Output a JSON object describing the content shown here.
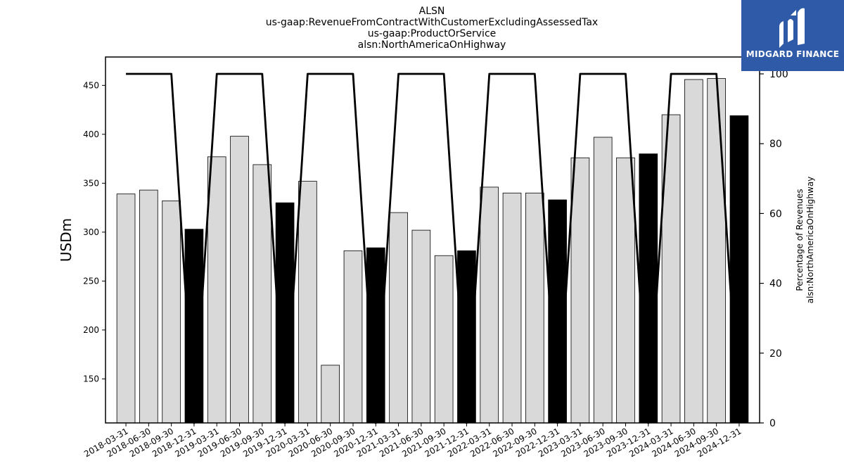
{
  "chart_data": {
    "type": "bar",
    "title_lines": [
      "ALSN",
      "us-gaap:RevenueFromContractWithCustomerExcludingAssessedTax",
      "us-gaap:ProductOrService",
      "alsn:NorthAmericaOnHighway"
    ],
    "ylabel": "USDm",
    "y2label_lines": [
      "Percentage of Revenues",
      "alsn:NorthAmericaOnHighway"
    ],
    "ylim": [
      105,
      479
    ],
    "y2lim": [
      0,
      100
    ],
    "yticks": [
      150,
      200,
      250,
      300,
      350,
      400,
      450
    ],
    "y2ticks": [
      0,
      20,
      40,
      60,
      80,
      100
    ],
    "categories": [
      "2018-03-31",
      "2018-06-30",
      "2018-09-30",
      "2018-12-31",
      "2019-03-31",
      "2019-06-30",
      "2019-09-30",
      "2019-12-31",
      "2020-03-31",
      "2020-06-30",
      "2020-09-30",
      "2020-12-31",
      "2021-03-31",
      "2021-06-30",
      "2021-09-30",
      "2021-12-31",
      "2022-03-31",
      "2022-06-30",
      "2022-09-30",
      "2022-12-31",
      "2023-03-31",
      "2023-06-30",
      "2023-09-30",
      "2023-12-31",
      "2024-03-31",
      "2024-06-30",
      "2024-09-30",
      "2024-12-31"
    ],
    "values": [
      339,
      343,
      332,
      303,
      377,
      398,
      369,
      330,
      352,
      164,
      281,
      284,
      320,
      302,
      276,
      281,
      346,
      340,
      340,
      333,
      376,
      397,
      376,
      380,
      420,
      456,
      457,
      419
    ],
    "highlight": [
      false,
      false,
      false,
      true,
      false,
      false,
      false,
      true,
      false,
      false,
      false,
      true,
      false,
      false,
      false,
      true,
      false,
      false,
      false,
      true,
      false,
      false,
      false,
      true,
      false,
      false,
      false,
      true
    ],
    "colors": {
      "bar": "#d9d9d9",
      "bar_highlight": "#000000",
      "line": "#000000"
    },
    "line_series": {
      "axis": "right",
      "values": [
        100,
        100,
        100,
        0,
        100,
        100,
        100,
        0,
        100,
        100,
        100,
        0,
        100,
        100,
        100,
        0,
        100,
        100,
        100,
        0,
        100,
        100,
        100,
        0,
        100,
        100,
        100,
        0
      ]
    }
  },
  "logo": {
    "text": "MIDGARD FINANCE"
  }
}
